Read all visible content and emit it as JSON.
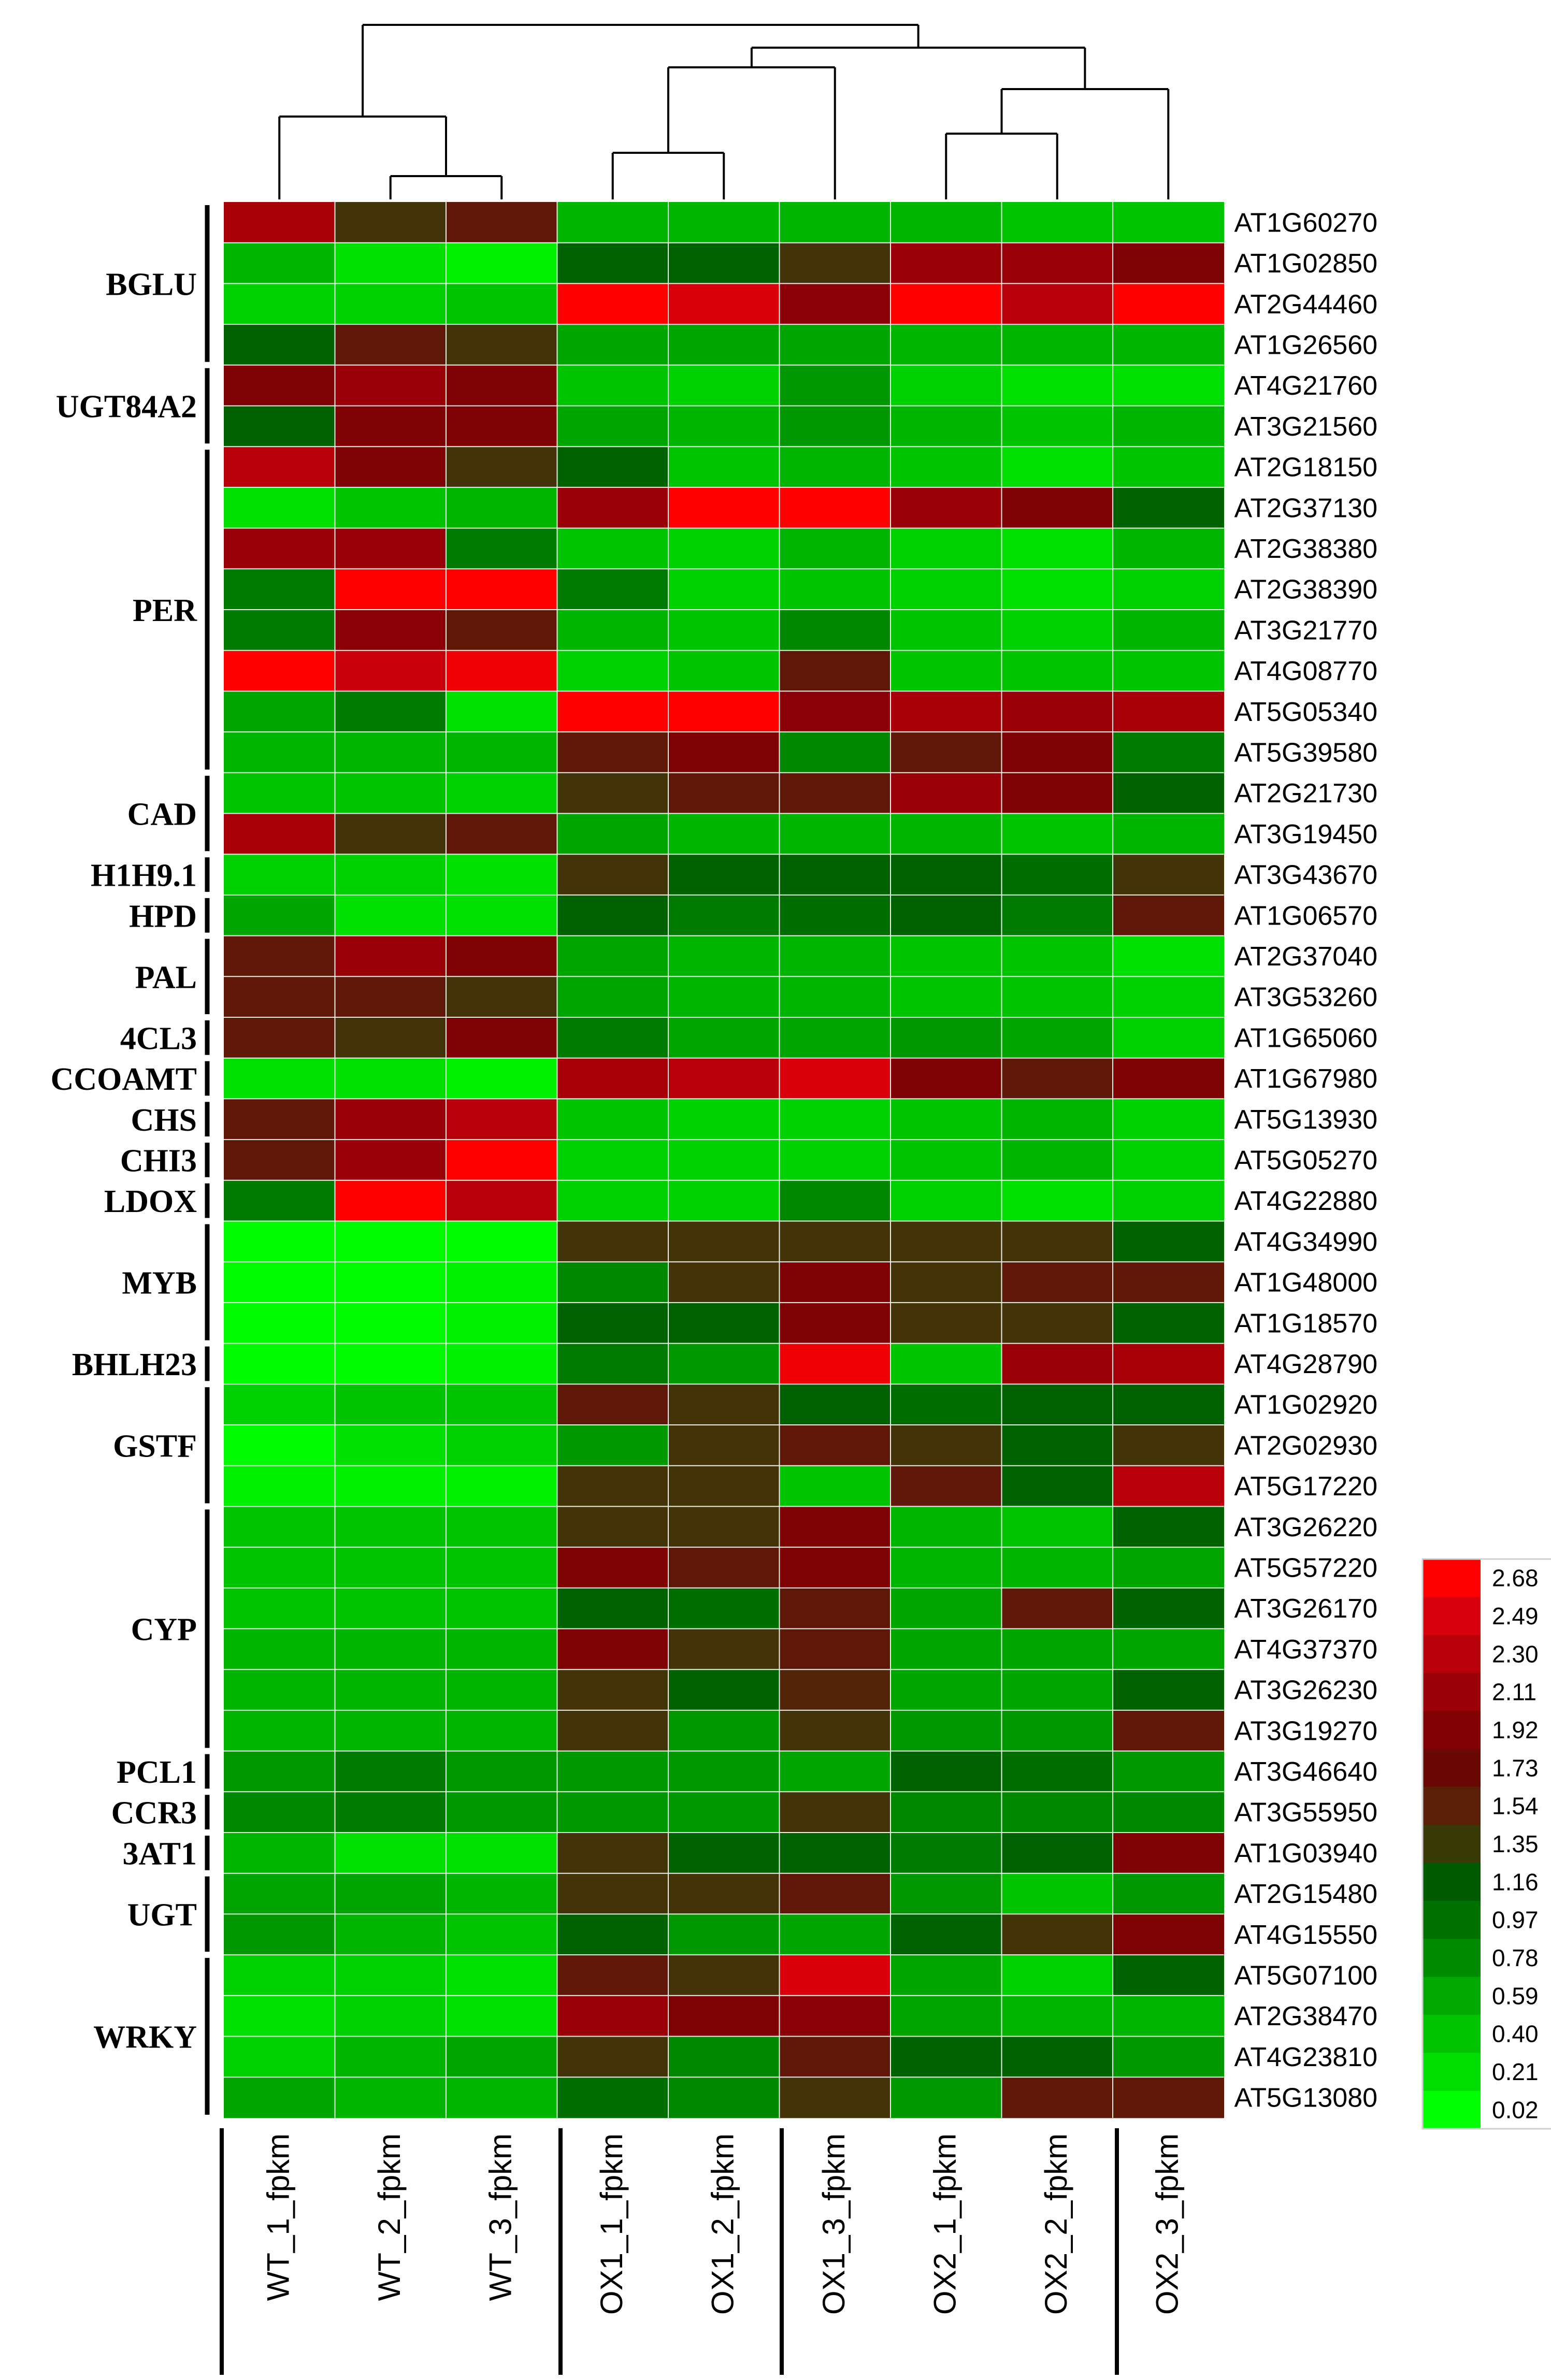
{
  "chart_data": {
    "type": "heatmap",
    "title": "",
    "xlabel": "",
    "ylabel": "",
    "columns": [
      "WT_1_fpkm",
      "WT_2_fpkm",
      "WT_3_fpkm",
      "OX1_1_fpkm",
      "OX1_2_fpkm",
      "OX1_3_fpkm",
      "OX2_1_fpkm",
      "OX2_2_fpkm",
      "OX2_3_fpkm"
    ],
    "rows": [
      "AT1G60270",
      "AT1G02850",
      "AT2G44460",
      "AT1G26560",
      "AT4G21760",
      "AT3G21560",
      "AT2G18150",
      "AT2G37130",
      "AT2G38380",
      "AT2G38390",
      "AT3G21770",
      "AT4G08770",
      "AT5G05340",
      "AT5G39580",
      "AT2G21730",
      "AT3G19450",
      "AT3G43670",
      "AT1G06570",
      "AT2G37040",
      "AT3G53260",
      "AT1G65060",
      "AT1G67980",
      "AT5G13930",
      "AT5G05270",
      "AT4G22880",
      "AT4G34990",
      "AT1G48000",
      "AT1G18570",
      "AT4G28790",
      "AT1G02920",
      "AT2G02930",
      "AT5G17220",
      "AT3G26220",
      "AT5G57220",
      "AT3G26170",
      "AT4G37370",
      "AT3G26230",
      "AT3G19270",
      "AT3G46640",
      "AT3G55950",
      "AT1G03940",
      "AT2G15480",
      "AT4G15550",
      "AT5G07100",
      "AT2G38470",
      "AT4G23810",
      "AT5G13080"
    ],
    "values": [
      [
        2.2,
        1.4,
        1.6,
        0.5,
        0.5,
        0.5,
        0.5,
        0.4,
        0.4
      ],
      [
        0.5,
        0.2,
        0.1,
        1.1,
        1.1,
        1.4,
        2.1,
        2.1,
        1.9
      ],
      [
        0.3,
        0.3,
        0.4,
        2.68,
        2.5,
        2.0,
        2.68,
        2.3,
        2.68
      ],
      [
        1.1,
        1.6,
        1.4,
        0.6,
        0.6,
        0.6,
        0.5,
        0.5,
        0.5
      ],
      [
        1.9,
        2.1,
        1.9,
        0.4,
        0.3,
        0.7,
        0.3,
        0.2,
        0.2
      ],
      [
        1.1,
        1.9,
        1.9,
        0.6,
        0.5,
        0.7,
        0.5,
        0.4,
        0.5
      ],
      [
        2.3,
        1.9,
        1.4,
        1.1,
        0.4,
        0.5,
        0.4,
        0.2,
        0.4
      ],
      [
        0.2,
        0.4,
        0.5,
        2.1,
        2.68,
        2.68,
        2.1,
        1.9,
        1.1
      ],
      [
        2.1,
        2.1,
        0.9,
        0.4,
        0.3,
        0.5,
        0.3,
        0.2,
        0.5
      ],
      [
        0.9,
        2.68,
        2.68,
        0.9,
        0.3,
        0.4,
        0.3,
        0.2,
        0.3
      ],
      [
        0.9,
        2.0,
        1.6,
        0.5,
        0.4,
        0.8,
        0.4,
        0.3,
        0.5
      ],
      [
        2.68,
        2.4,
        2.6,
        0.3,
        0.4,
        1.6,
        0.4,
        0.4,
        0.4
      ],
      [
        0.6,
        0.9,
        0.2,
        2.68,
        2.68,
        2.0,
        2.2,
        2.1,
        2.2
      ],
      [
        0.5,
        0.5,
        0.5,
        1.6,
        1.9,
        0.8,
        1.6,
        1.9,
        0.9
      ],
      [
        0.4,
        0.4,
        0.3,
        1.4,
        1.6,
        1.6,
        2.1,
        1.9,
        1.1
      ],
      [
        2.2,
        1.4,
        1.6,
        0.6,
        0.5,
        0.5,
        0.5,
        0.4,
        0.5
      ],
      [
        0.3,
        0.3,
        0.2,
        1.4,
        1.1,
        1.1,
        1.1,
        1.0,
        1.4
      ],
      [
        0.6,
        0.2,
        0.2,
        1.1,
        0.9,
        1.0,
        1.1,
        0.9,
        1.6
      ],
      [
        1.6,
        2.1,
        1.9,
        0.6,
        0.5,
        0.5,
        0.4,
        0.4,
        0.2
      ],
      [
        1.6,
        1.6,
        1.4,
        0.6,
        0.5,
        0.5,
        0.4,
        0.4,
        0.3
      ],
      [
        1.6,
        1.4,
        1.9,
        0.9,
        0.6,
        0.6,
        0.7,
        0.6,
        0.3
      ],
      [
        0.2,
        0.2,
        0.1,
        2.2,
        2.3,
        2.5,
        1.9,
        1.6,
        1.9
      ],
      [
        1.6,
        2.1,
        2.3,
        0.4,
        0.3,
        0.3,
        0.4,
        0.5,
        0.3
      ],
      [
        1.6,
        2.1,
        2.68,
        0.3,
        0.3,
        0.3,
        0.4,
        0.5,
        0.3
      ],
      [
        0.9,
        2.68,
        2.3,
        0.3,
        0.3,
        0.8,
        0.3,
        0.2,
        0.3
      ],
      [
        0.05,
        0.05,
        0.05,
        1.4,
        1.4,
        1.4,
        1.4,
        1.4,
        1.1
      ],
      [
        0.05,
        0.05,
        0.1,
        0.8,
        1.4,
        1.9,
        1.4,
        1.6,
        1.6
      ],
      [
        0.05,
        0.05,
        0.1,
        1.1,
        1.1,
        1.9,
        1.4,
        1.4,
        1.1
      ],
      [
        0.05,
        0.05,
        0.1,
        0.9,
        0.7,
        2.6,
        0.4,
        2.1,
        2.2
      ],
      [
        0.3,
        0.4,
        0.4,
        1.6,
        1.4,
        1.1,
        1.0,
        1.1,
        1.1
      ],
      [
        0.05,
        0.2,
        0.3,
        0.7,
        1.4,
        1.6,
        1.4,
        1.1,
        1.4
      ],
      [
        0.1,
        0.1,
        0.1,
        1.4,
        1.4,
        0.4,
        1.6,
        1.1,
        2.3
      ],
      [
        0.4,
        0.4,
        0.4,
        1.4,
        1.4,
        1.9,
        0.5,
        0.4,
        1.1
      ],
      [
        0.4,
        0.4,
        0.4,
        1.9,
        1.6,
        1.9,
        0.5,
        0.5,
        0.6
      ],
      [
        0.4,
        0.4,
        0.4,
        1.1,
        1.0,
        1.6,
        0.6,
        1.6,
        1.1
      ],
      [
        0.5,
        0.5,
        0.5,
        1.9,
        1.4,
        1.6,
        0.6,
        0.6,
        0.6
      ],
      [
        0.5,
        0.5,
        0.5,
        1.4,
        1.1,
        1.5,
        0.6,
        0.6,
        1.1
      ],
      [
        0.5,
        0.5,
        0.5,
        1.4,
        0.7,
        1.4,
        0.7,
        0.7,
        1.6
      ],
      [
        0.7,
        0.9,
        0.7,
        0.7,
        0.7,
        0.6,
        1.1,
        1.0,
        0.7
      ],
      [
        0.8,
        0.9,
        0.7,
        0.7,
        0.7,
        1.4,
        0.8,
        0.8,
        0.8
      ],
      [
        0.5,
        0.2,
        0.2,
        1.4,
        1.1,
        1.1,
        0.9,
        1.1,
        1.9
      ],
      [
        0.6,
        0.6,
        0.5,
        1.4,
        1.4,
        1.6,
        0.7,
        0.4,
        0.7
      ],
      [
        0.7,
        0.5,
        0.4,
        1.1,
        0.7,
        0.6,
        1.1,
        1.4,
        1.9
      ],
      [
        0.3,
        0.3,
        0.2,
        1.6,
        1.4,
        2.5,
        0.6,
        0.3,
        1.1
      ],
      [
        0.2,
        0.3,
        0.2,
        2.1,
        1.9,
        2.0,
        0.6,
        0.5,
        0.5
      ],
      [
        0.3,
        0.5,
        0.6,
        1.4,
        0.8,
        1.6,
        1.1,
        1.1,
        0.7
      ],
      [
        0.6,
        0.5,
        0.5,
        1.0,
        0.8,
        1.4,
        0.7,
        1.6,
        1.6
      ]
    ],
    "groups": [
      {
        "label": "BGLU",
        "rows": [
          0,
          3
        ]
      },
      {
        "label": "UGT84A2",
        "rows": [
          4,
          5
        ]
      },
      {
        "label": "PER",
        "rows": [
          6,
          13
        ]
      },
      {
        "label": "CAD",
        "rows": [
          14,
          15
        ]
      },
      {
        "label": "H1H9.1",
        "rows": [
          16,
          16
        ]
      },
      {
        "label": "HPD",
        "rows": [
          17,
          17
        ]
      },
      {
        "label": "PAL",
        "rows": [
          18,
          19
        ]
      },
      {
        "label": "4CL3",
        "rows": [
          20,
          20
        ]
      },
      {
        "label": "CCOAMT",
        "rows": [
          21,
          21
        ]
      },
      {
        "label": "CHS",
        "rows": [
          22,
          22
        ]
      },
      {
        "label": "CHI3",
        "rows": [
          23,
          23
        ]
      },
      {
        "label": "LDOX",
        "rows": [
          24,
          24
        ]
      },
      {
        "label": "MYB",
        "rows": [
          25,
          27
        ]
      },
      {
        "label": "BHLH23",
        "rows": [
          28,
          28
        ]
      },
      {
        "label": "GSTF",
        "rows": [
          29,
          31
        ]
      },
      {
        "label": "CYP",
        "rows": [
          32,
          37
        ]
      },
      {
        "label": "PCL1",
        "rows": [
          38,
          38
        ]
      },
      {
        "label": "CCR3",
        "rows": [
          39,
          39
        ]
      },
      {
        "label": "3AT1",
        "rows": [
          40,
          40
        ]
      },
      {
        "label": "UGT",
        "rows": [
          41,
          42
        ]
      },
      {
        "label": "WRKY",
        "rows": [
          43,
          46
        ]
      }
    ],
    "colorbar": {
      "min": 0.02,
      "max": 2.68,
      "ticks": [
        "2.68",
        "2.49",
        "2.30",
        "2.11",
        "1.92",
        "1.73",
        "1.54",
        "1.35",
        "1.16",
        "0.97",
        "0.78",
        "0.59",
        "0.40",
        "0.21",
        "0.02"
      ],
      "colors": [
        "#ff0000",
        "#d8000c",
        "#b8000a",
        "#9a0008",
        "#800004",
        "#6a0806",
        "#5a2008",
        "#3a3a08",
        "#005a00",
        "#007000",
        "#008a00",
        "#00a800",
        "#00c400",
        "#00dd00",
        "#00ff00"
      ]
    },
    "dendrogram": "columns clustered: (WT_1, (WT_2, WT_3)) and ((OX1_1, OX1_2), OX1_3), ((OX2_1, OX2_2), OX2_3)"
  }
}
